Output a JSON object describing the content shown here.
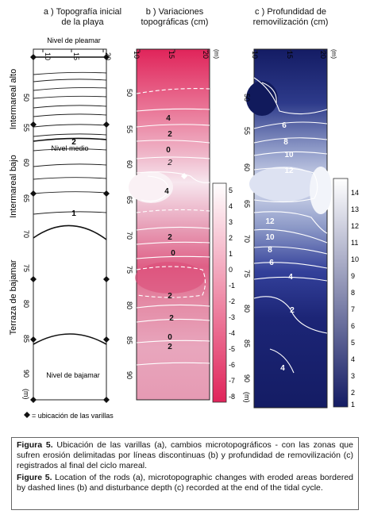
{
  "panels": {
    "a": {
      "title": "a ) Topografía inicial de la playa"
    },
    "b": {
      "title": "b ) Variaciones topográficas (cm)"
    },
    "c": {
      "title": "c )  Profundidad de removilización (cm)"
    }
  },
  "axes": {
    "x_ticks": [
      "10",
      "15",
      "20"
    ],
    "x_unit": "(m)",
    "y_ticks": [
      "50",
      "55",
      "60",
      "65",
      "70",
      "75",
      "80",
      "85",
      "90"
    ],
    "y_unit": "(m)"
  },
  "zones": [
    "Intermareal alto",
    "Intermareal bajo",
    "Terraza de bajamar"
  ],
  "levels": {
    "pleamar": "Nivel de pleamar",
    "medio": "Nivel medio",
    "bajamar": "Nivel de bajamar"
  },
  "contour_labels_a": [
    "2",
    "1"
  ],
  "contour_labels_b": [
    "4",
    "2",
    "0",
    "2",
    "4",
    "2",
    "0",
    "2",
    "2",
    "0",
    "2"
  ],
  "contour_labels_c": [
    "6",
    "8",
    "10",
    "12",
    "12",
    "10",
    "8",
    "6",
    "4",
    "2",
    "4"
  ],
  "legend_b": {
    "ticks": [
      "5",
      "4",
      "3",
      "2",
      "1",
      "0",
      "-1",
      "-2",
      "-3",
      "-4",
      "-5",
      "-6",
      "-7",
      "-8"
    ]
  },
  "legend_c": {
    "ticks": [
      "14",
      "13",
      "12",
      "11",
      "10",
      "9",
      "8",
      "7",
      "6",
      "5",
      "4",
      "3",
      "2",
      "1"
    ]
  },
  "rods_legend": "= ubicación de las varillas",
  "caption": {
    "es_label": "Figura 5.",
    "es_text": " Ubicación de las varillas (a), cambios microtopográficos - con las zonas que sufren erosión delimitadas por líneas discontinuas (b) y profundidad de removilización (c) registrados al final del ciclo mareal.",
    "en_label": "Figure 5.",
    "en_text": " Location of the rods (a), microtopographic changes with eroded areas bordered by dashed lines (b) and disturbance depth (c) recorded at the end of the tidal cycle."
  },
  "colors": {
    "pink_dark": "#e0245a",
    "pink_light": "#f7e6ee",
    "navy_dark": "#141c64",
    "navy_light": "#d6dcee"
  }
}
